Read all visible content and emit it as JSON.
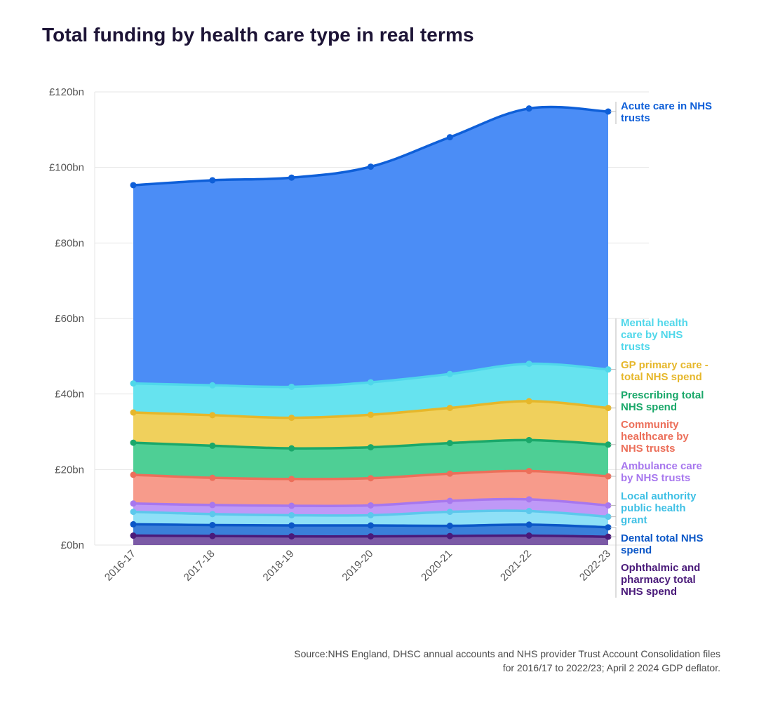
{
  "title": "Total funding by health care type in real terms",
  "source": "Source:NHS England, DHSC annual accounts and NHS provider Trust Account Consolidation files for 2016/17 to 2022/23; April 2 2024 GDP deflator.",
  "chart_data": {
    "type": "area",
    "stacked": true,
    "title": "Total funding by health care type in real terms",
    "categories": [
      "2016-17",
      "2017-18",
      "2018-19",
      "2019-20",
      "2020-21",
      "2021-22",
      "2022-23"
    ],
    "y_ticks": [
      "£0bn",
      "£20bn",
      "£40bn",
      "£60bn",
      "£80bn",
      "£100bn",
      "£120bn"
    ],
    "ylim": [
      0,
      120
    ],
    "grid": true,
    "series": [
      {
        "name": "Ophthalmic and pharmacy total NHS spend",
        "label": "Ophthalmic and pharmacy total NHS spend",
        "color": "#4a1a7a",
        "fill": "#7b5aa6",
        "cumulative": [
          2.5,
          2.4,
          2.3,
          2.3,
          2.4,
          2.5,
          2.2
        ]
      },
      {
        "name": "Dental total NHS spend",
        "label": "Dental total NHS spend",
        "color": "#0b57c7",
        "fill": "#3a7fd9",
        "cumulative": [
          5.5,
          5.3,
          5.2,
          5.2,
          5.1,
          5.4,
          4.7
        ]
      },
      {
        "name": "Local authority public health grant",
        "label": "Local authority public health grant",
        "color": "#5cc8ec",
        "fill": "#8ee0f7",
        "cumulative": [
          8.8,
          8.2,
          7.9,
          7.9,
          8.8,
          9.0,
          7.5
        ]
      },
      {
        "name": "Ambulance care by NHS trusts",
        "label": "Ambulance care by NHS trusts",
        "color": "#a777ee",
        "fill": "#bf99f7",
        "cumulative": [
          11.0,
          10.6,
          10.4,
          10.5,
          11.7,
          12.1,
          10.5
        ]
      },
      {
        "name": "Community healthcare by NHS trusts",
        "label": "Community healthcare by NHS trusts",
        "color": "#ec6f5a",
        "fill": "#f79b8b",
        "cumulative": [
          18.6,
          17.8,
          17.5,
          17.7,
          18.9,
          19.6,
          18.2
        ]
      },
      {
        "name": "Prescribing total NHS spend",
        "label": "Prescribing total NHS spend",
        "color": "#1aa86a",
        "fill": "#4ecf95",
        "cumulative": [
          27.1,
          26.3,
          25.6,
          25.9,
          27.0,
          27.8,
          26.6
        ]
      },
      {
        "name": "GP primary care - total NHS spend",
        "label": "GP primary care - total NHS spend",
        "color": "#e6b72a",
        "fill": "#f0d05c",
        "cumulative": [
          35.1,
          34.4,
          33.7,
          34.5,
          36.3,
          38.1,
          36.3
        ]
      },
      {
        "name": "Mental health care by NHS trusts",
        "label": "Mental health care by NHS trusts",
        "color": "#4fd7ea",
        "fill": "#66e3ef",
        "cumulative": [
          42.8,
          42.3,
          41.9,
          43.1,
          45.3,
          48.0,
          46.5
        ]
      },
      {
        "name": "Acute care in NHS trusts",
        "label": "Acute care in NHS trusts",
        "color": "#0e5fd8",
        "fill": "#4b8df6",
        "cumulative": [
          95.3,
          96.6,
          97.3,
          100.2,
          108.0,
          115.6,
          114.8
        ]
      }
    ]
  },
  "labels": {
    "acute": [
      "Acute care in NHS",
      "trusts"
    ],
    "mental": [
      "Mental health",
      "care by NHS",
      "trusts"
    ],
    "gp": [
      "GP primary care -",
      "total NHS spend"
    ],
    "prescribing": [
      "Prescribing total",
      "NHS spend"
    ],
    "community": [
      "Community",
      "healthcare by",
      "NHS trusts"
    ],
    "ambulance": [
      "Ambulance care",
      "by NHS trusts"
    ],
    "local": [
      "Local authority",
      "public health",
      "grant"
    ],
    "dental": [
      "Dental total NHS",
      "spend"
    ],
    "ophthalmic": [
      "Ophthalmic and",
      "pharmacy total",
      "NHS spend"
    ]
  }
}
